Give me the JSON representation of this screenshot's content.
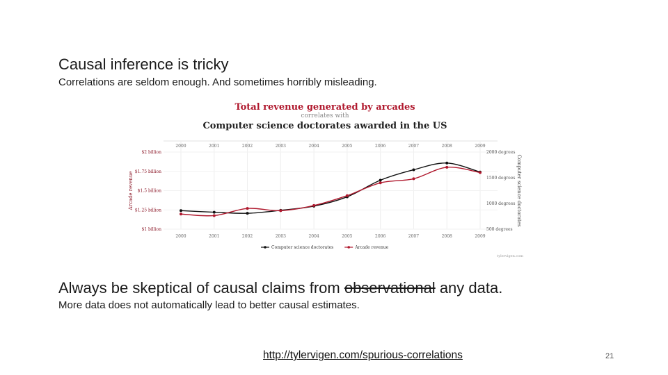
{
  "slide": {
    "title": "Causal inference is tricky",
    "subtitle": "Correlations are seldom enough. And sometimes horribly misleading.",
    "heading2_before": "Always be skeptical of causal claims from ",
    "heading2_struck": "observational",
    "heading2_after": " any data.",
    "sub2": "More data does not automatically lead to better causal estimates.",
    "link": "http://tylervigen.com/spurious-correlations",
    "slide_number": "21"
  },
  "chart_data": {
    "type": "line",
    "title": "Total revenue generated by arcades",
    "connector": "correlates with",
    "title2": "Computer science doctorates awarded in the US",
    "x": [
      "2000",
      "2001",
      "2002",
      "2003",
      "2004",
      "2005",
      "2006",
      "2007",
      "2008",
      "2009"
    ],
    "y_left_label": "Arcade revenue",
    "y_left_ticks": [
      "$1 billion",
      "$1.25 billion",
      "$1.5 billion",
      "$1.75 billion",
      "$2 billion"
    ],
    "y_left_range": [
      1.0,
      2.0
    ],
    "y_right_label": "Computer science doctorates",
    "y_right_ticks": [
      "500 degrees",
      "1000 degrees",
      "1500 degrees",
      "2000 degrees"
    ],
    "y_right_range": [
      500,
      2000
    ],
    "series": [
      {
        "name": "Computer science doctorates",
        "axis": "right",
        "color": "#111111",
        "values": [
          861,
          830,
          809,
          867,
          948,
          1129,
          1453,
          1656,
          1787,
          1611
        ]
      },
      {
        "name": "Arcade revenue",
        "axis": "left",
        "color": "#b0192e",
        "values": [
          1.196,
          1.176,
          1.269,
          1.24,
          1.307,
          1.435,
          1.601,
          1.654,
          1.803,
          1.734
        ]
      }
    ],
    "credit": "tylervigen.com",
    "grid": true,
    "legend": "bottom"
  }
}
